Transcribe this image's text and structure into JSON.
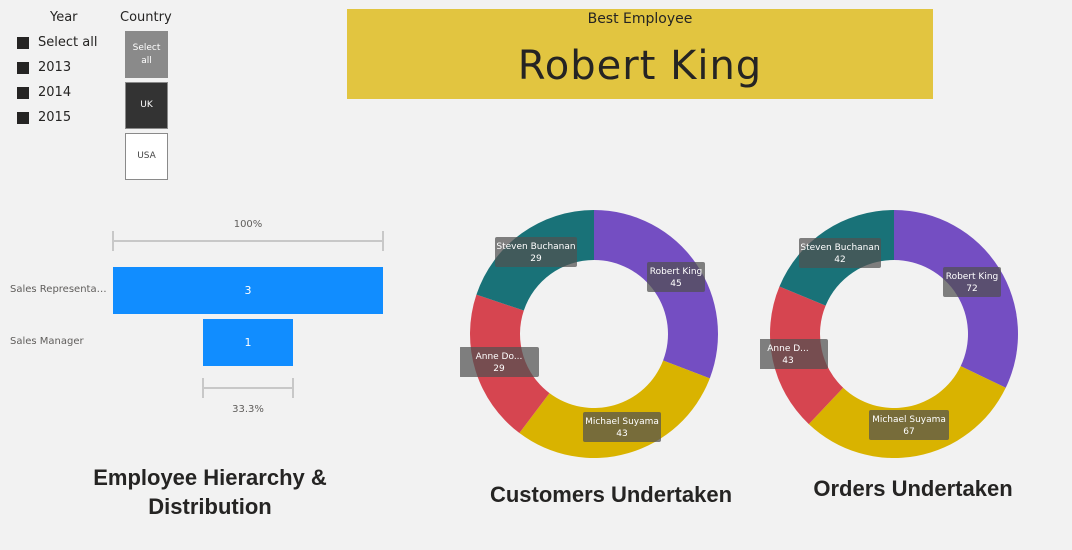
{
  "year_slicer": {
    "title": "Year",
    "items": [
      {
        "label": "Select all"
      },
      {
        "label": "2013"
      },
      {
        "label": "2014"
      },
      {
        "label": "2015"
      }
    ]
  },
  "country_slicer": {
    "title": "Country",
    "buttons": [
      {
        "label": "Select all"
      },
      {
        "label": "UK"
      },
      {
        "label": "USA"
      }
    ]
  },
  "best_employee": {
    "label": "Best Employee",
    "value": "Robert King",
    "background": "#e2c540"
  },
  "funnel": {
    "title": "Employee Hierarchy & Distribution",
    "top_pct": "100%",
    "bottom_pct": "33.3%",
    "color": "#118dff",
    "stages": [
      {
        "label": "Sales Representat...",
        "value": 3
      },
      {
        "label": "Sales Manager",
        "value": 1
      }
    ]
  },
  "chart_data": [
    {
      "type": "pie",
      "title": "Customers Undertaken",
      "categories": [
        "Robert King",
        "Michael Suyama",
        "Anne Do...",
        "Steven Buchanan"
      ],
      "values": [
        45,
        43,
        29,
        29
      ],
      "colors": [
        "#744ec2",
        "#d9b300",
        "#d64550",
        "#197278"
      ]
    },
    {
      "type": "pie",
      "title": "Orders Undertaken",
      "categories": [
        "Robert King",
        "Michael Suyama",
        "Anne D...",
        "Steven Buchanan"
      ],
      "values": [
        72,
        67,
        43,
        42
      ],
      "colors": [
        "#744ec2",
        "#d9b300",
        "#d64550",
        "#197278"
      ]
    }
  ]
}
